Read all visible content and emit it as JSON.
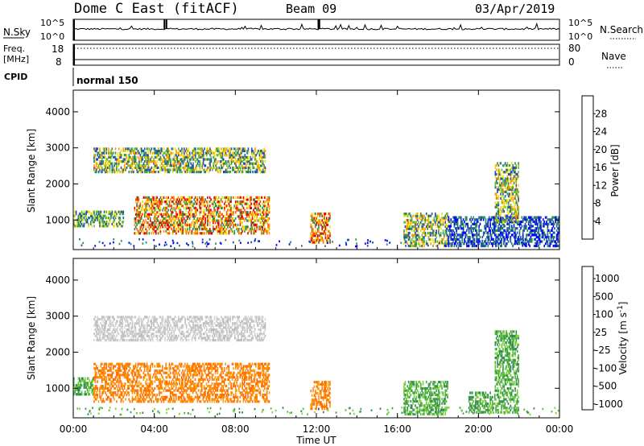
{
  "header": {
    "station": "Dome C East (fitACF)",
    "beam": "Beam 09",
    "date": "03/Apr/2019"
  },
  "noise_panel": {
    "left_label": "N.Sky",
    "right_label": "N.Search",
    "tick_top": "10^5",
    "tick_bottom": "10^0"
  },
  "freq_panel": {
    "left_label_line1": "Freq.",
    "left_label_line2": "[MHz]",
    "right_label": "Nave",
    "left_ticks": [
      "18",
      "8"
    ],
    "right_ticks": [
      "80",
      "0"
    ]
  },
  "cpid_panel": {
    "label": "CPID",
    "mode": "normal 150"
  },
  "x_axis": {
    "label": "Time UT",
    "ticks": [
      "00:00",
      "04:00",
      "08:00",
      "12:00",
      "16:00",
      "20:00",
      "00:00"
    ]
  },
  "colors": {
    "power_scale": [
      "#0000ff",
      "#1e50b4",
      "#2e8b57",
      "#5fbf3a",
      "#f0e000",
      "#ff9900",
      "#ff5500",
      "#e00000"
    ],
    "velocity_scale": [
      "#ff0000",
      "#ff6a00",
      "#ffa000",
      "#ffd400",
      "#c8c8c8",
      "#7cd63c",
      "#2e8b57",
      "#2050c0",
      "#1030a0"
    ]
  },
  "chart_data": [
    {
      "type": "heatmap",
      "title": "",
      "xlabel": "Time UT",
      "ylabel": "Slant Range [km]",
      "xlim_hours": [
        0,
        24
      ],
      "ylim_km": [
        180,
        4600
      ],
      "yticks": [
        "1000",
        "2000",
        "3000",
        "4000"
      ],
      "colorbar": {
        "label": "Power [dB]",
        "ticks": [
          "4",
          "8",
          "12",
          "16",
          "20",
          "24",
          "28"
        ]
      },
      "regions": [
        {
          "t0": 0.0,
          "t1": 2.5,
          "r0": 800,
          "r1": 1250,
          "level": "low-mid"
        },
        {
          "t0": 1.0,
          "t1": 9.5,
          "r0": 2300,
          "r1": 3000,
          "level": "mid"
        },
        {
          "t0": 3.0,
          "t1": 9.7,
          "r0": 600,
          "r1": 1650,
          "level": "high"
        },
        {
          "t0": 11.7,
          "t1": 12.7,
          "r0": 350,
          "r1": 1200,
          "level": "high"
        },
        {
          "t0": 16.3,
          "t1": 18.5,
          "r0": 250,
          "r1": 1200,
          "level": "mid"
        },
        {
          "t0": 18.5,
          "t1": 24.0,
          "r0": 250,
          "r1": 1100,
          "level": "low"
        },
        {
          "t0": 20.8,
          "t1": 22.0,
          "r0": 900,
          "r1": 2600,
          "level": "mid"
        }
      ]
    },
    {
      "type": "heatmap",
      "title": "",
      "xlabel": "Time UT",
      "ylabel": "Slant Range [km]",
      "xlim_hours": [
        0,
        24
      ],
      "ylim_km": [
        180,
        4600
      ],
      "yticks": [
        "1000",
        "2000",
        "3000",
        "4000"
      ],
      "colorbar": {
        "label": "Velocity [m s^-1]",
        "ticks": [
          "1000",
          "500",
          "100",
          "25",
          "-25",
          "-100",
          "-500",
          "-1000"
        ]
      },
      "regions": [
        {
          "t0": 0.0,
          "t1": 1.0,
          "r0": 800,
          "r1": 1300,
          "level": "green"
        },
        {
          "t0": 1.0,
          "t1": 9.5,
          "r0": 2300,
          "r1": 3000,
          "level": "grey"
        },
        {
          "t0": 1.0,
          "t1": 9.7,
          "r0": 600,
          "r1": 1700,
          "level": "orange"
        },
        {
          "t0": 11.7,
          "t1": 12.7,
          "r0": 400,
          "r1": 1200,
          "level": "orange"
        },
        {
          "t0": 16.3,
          "t1": 18.5,
          "r0": 250,
          "r1": 1200,
          "level": "green"
        },
        {
          "t0": 19.5,
          "t1": 22.0,
          "r0": 300,
          "r1": 900,
          "level": "green"
        },
        {
          "t0": 20.8,
          "t1": 22.0,
          "r0": 900,
          "r1": 2600,
          "level": "green"
        }
      ]
    }
  ]
}
